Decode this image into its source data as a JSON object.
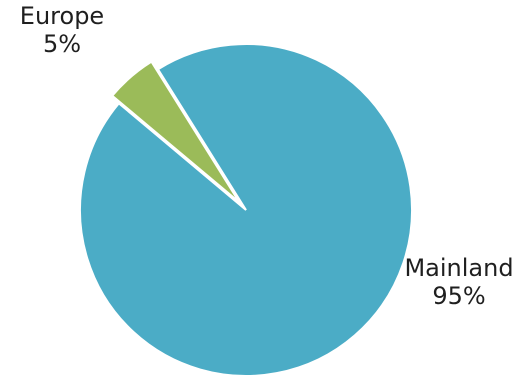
{
  "chart_data": {
    "type": "pie",
    "slices": [
      {
        "label": "Mainland",
        "percent_label": "95%",
        "value": 95,
        "color": "#4BACC6"
      },
      {
        "label": "Europe",
        "percent_label": "5%",
        "value": 5,
        "color": "#9BBB59",
        "exploded": true
      }
    ]
  }
}
